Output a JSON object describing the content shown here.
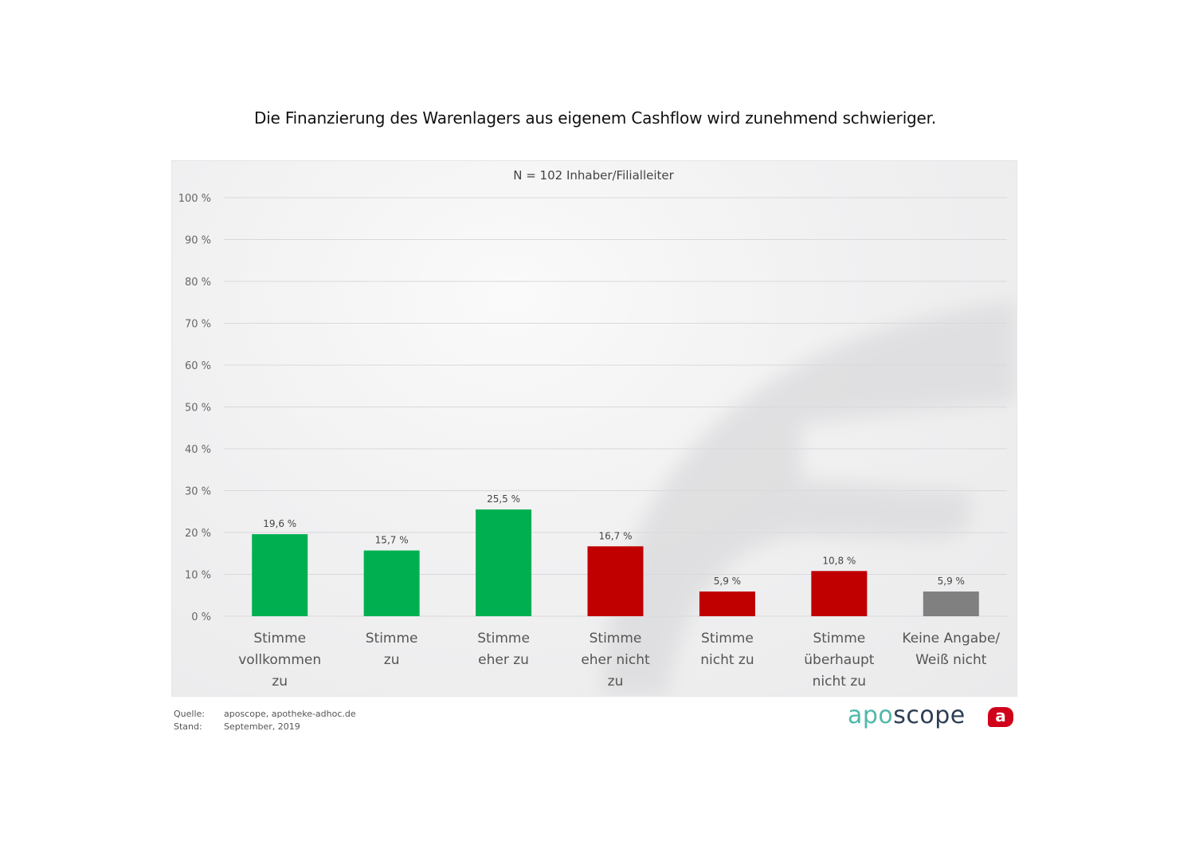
{
  "chart_data": {
    "type": "bar",
    "title": "Die Finanzierung des Warenlagers aus eigenem Cashflow wird zunehmend schwieriger.",
    "subtitle": "N = 102 Inhaber/Filialleiter",
    "xlabel": "",
    "ylabel": "",
    "ylim": [
      0,
      100
    ],
    "yticks": [
      0,
      10,
      20,
      30,
      40,
      50,
      60,
      70,
      80,
      90,
      100
    ],
    "ytick_labels": [
      "0 %",
      "10 %",
      "20 %",
      "30 %",
      "40 %",
      "50 %",
      "60 %",
      "70 %",
      "80 %",
      "90 %",
      "100 %"
    ],
    "grid": true,
    "categories": [
      [
        "Stimme",
        "vollkommen",
        "zu"
      ],
      [
        "Stimme",
        "zu"
      ],
      [
        "Stimme",
        "eher zu"
      ],
      [
        "Stimme",
        "eher nicht",
        "zu"
      ],
      [
        "Stimme",
        "nicht zu"
      ],
      [
        "Stimme",
        "überhaupt",
        "nicht zu"
      ],
      [
        "Keine Angabe/",
        "Weiß nicht"
      ]
    ],
    "values": [
      19.6,
      15.7,
      25.5,
      16.7,
      5.9,
      10.8,
      5.9
    ],
    "value_labels": [
      "19,6 %",
      "15,7 %",
      "25,5 %",
      "16,7 %",
      "5,9 %",
      "10,8 %",
      "5,9 %"
    ],
    "colors": [
      "#00b050",
      "#00b050",
      "#00b050",
      "#c00000",
      "#c00000",
      "#c00000",
      "#808080"
    ]
  },
  "footer": {
    "source_label": "Quelle:",
    "source_value": "aposcope, apotheke-adhoc.de",
    "date_label": "Stand:",
    "date_value": "September, 2019"
  },
  "logo": {
    "part1": "apo",
    "part2": "scope",
    "badge": "a",
    "color_apo": "#4fb8a8",
    "color_scope": "#2d3e55",
    "color_badge": "#d0021b"
  }
}
